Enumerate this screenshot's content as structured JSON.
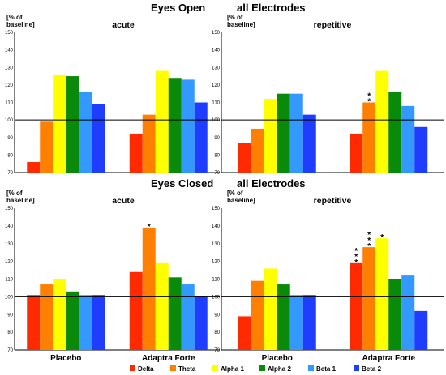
{
  "headings": {
    "eyes_open": "Eyes Open",
    "eyes_closed": "Eyes Closed",
    "all_electrodes": "all Electrodes"
  },
  "ylabel_line1": "[% of",
  "ylabel_line2": "baseline]",
  "legend": [
    {
      "name": "Delta",
      "color": "#ff2a00"
    },
    {
      "name": "Theta",
      "color": "#ff7f00"
    },
    {
      "name": "Alpha 1",
      "color": "#ffff00"
    },
    {
      "name": "Alpha 2",
      "color": "#0a8a0a"
    },
    {
      "name": "Beta 1",
      "color": "#3399ff"
    },
    {
      "name": "Beta 2",
      "color": "#1f3dff"
    }
  ],
  "chart_data": [
    {
      "type": "bar",
      "title": "acute",
      "section": "Eyes Open",
      "ylim": [
        70,
        150
      ],
      "yticks": [
        70,
        80,
        90,
        100,
        110,
        120,
        130,
        140,
        150
      ],
      "reference_line": 100,
      "categories": [
        "",
        ""
      ],
      "series": [
        {
          "name": "Delta",
          "values": [
            76,
            92
          ]
        },
        {
          "name": "Theta",
          "values": [
            99,
            103
          ]
        },
        {
          "name": "Alpha 1",
          "values": [
            126,
            128
          ]
        },
        {
          "name": "Alpha 2",
          "values": [
            125,
            124
          ]
        },
        {
          "name": "Beta 1",
          "values": [
            116,
            123
          ]
        },
        {
          "name": "Beta 2",
          "values": [
            109,
            110
          ]
        }
      ],
      "annotations": []
    },
    {
      "type": "bar",
      "title": "repetitive",
      "section": "Eyes Open",
      "ylim": [
        70,
        150
      ],
      "yticks": [
        70,
        80,
        90,
        100,
        110,
        120,
        130,
        140,
        150
      ],
      "reference_line": 100,
      "categories": [
        "",
        ""
      ],
      "series": [
        {
          "name": "Delta",
          "values": [
            87,
            92
          ]
        },
        {
          "name": "Theta",
          "values": [
            95,
            110
          ]
        },
        {
          "name": "Alpha 1",
          "values": [
            112,
            128
          ]
        },
        {
          "name": "Alpha 2",
          "values": [
            115,
            116
          ]
        },
        {
          "name": "Beta 1",
          "values": [
            115,
            108
          ]
        },
        {
          "name": "Beta 2",
          "values": [
            103,
            96
          ]
        }
      ],
      "annotations": [
        {
          "series": "Theta",
          "category_index": 1,
          "text": "**"
        }
      ]
    },
    {
      "type": "bar",
      "title": "acute",
      "section": "Eyes Closed",
      "ylim": [
        70,
        150
      ],
      "yticks": [
        70,
        80,
        90,
        100,
        110,
        120,
        130,
        140,
        150
      ],
      "reference_line": 100,
      "categories": [
        "Placebo",
        "Adaptra Forte"
      ],
      "series": [
        {
          "name": "Delta",
          "values": [
            101,
            114
          ]
        },
        {
          "name": "Theta",
          "values": [
            107,
            139
          ]
        },
        {
          "name": "Alpha 1",
          "values": [
            110,
            119
          ]
        },
        {
          "name": "Alpha 2",
          "values": [
            103,
            111
          ]
        },
        {
          "name": "Beta 1",
          "values": [
            101,
            107
          ]
        },
        {
          "name": "Beta 2",
          "values": [
            101,
            100
          ]
        }
      ],
      "annotations": [
        {
          "series": "Theta",
          "category_index": 1,
          "text": "*"
        }
      ]
    },
    {
      "type": "bar",
      "title": "repetitive",
      "section": "Eyes Closed",
      "ylim": [
        70,
        150
      ],
      "yticks": [
        70,
        80,
        90,
        100,
        110,
        120,
        130,
        140,
        150
      ],
      "reference_line": 100,
      "categories": [
        "Placebo",
        "Adaptra Forte"
      ],
      "series": [
        {
          "name": "Delta",
          "values": [
            89,
            119
          ]
        },
        {
          "name": "Theta",
          "values": [
            109,
            128
          ]
        },
        {
          "name": "Alpha 1",
          "values": [
            116,
            133
          ]
        },
        {
          "name": "Alpha 2",
          "values": [
            107,
            110
          ]
        },
        {
          "name": "Beta 1",
          "values": [
            101,
            112
          ]
        },
        {
          "name": "Beta 2",
          "values": [
            101,
            92
          ]
        }
      ],
      "annotations": [
        {
          "series": "Delta",
          "category_index": 1,
          "text": "***"
        },
        {
          "series": "Theta",
          "category_index": 1,
          "text": "***"
        },
        {
          "series": "Alpha 1",
          "category_index": 1,
          "text": "*"
        }
      ]
    }
  ]
}
